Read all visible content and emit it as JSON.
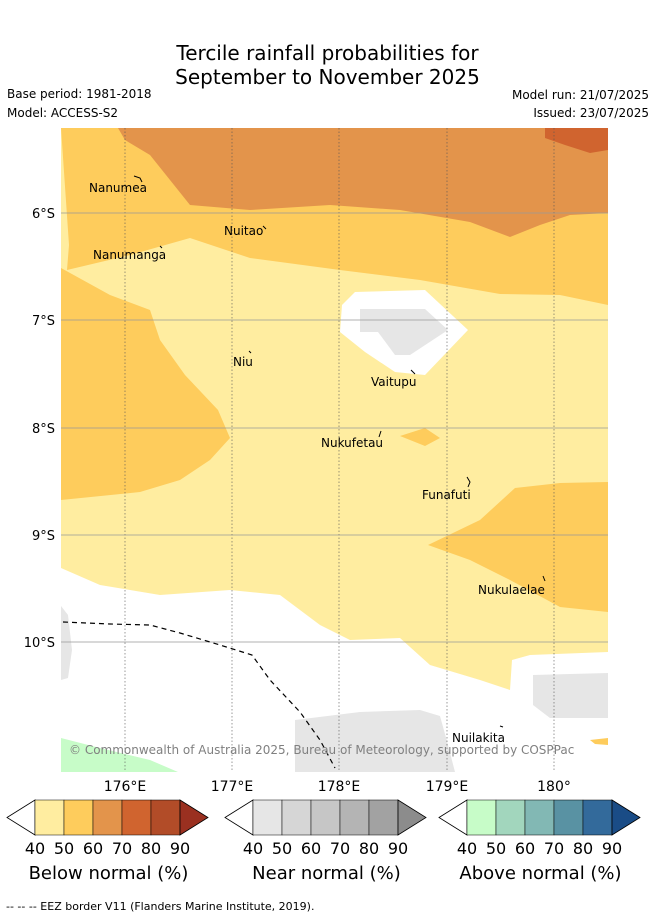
{
  "header": {
    "title_line1": "Tercile rainfall probabilities for",
    "title_line2": "September to November 2025",
    "base_period": "Base period: 1981-2018",
    "model": "Model: ACCESS-S2",
    "model_run": "Model run: 21/07/2025",
    "issued": "Issued: 23/07/2025"
  },
  "map": {
    "lat_ticks": [
      "6°S",
      "7°S",
      "8°S",
      "9°S",
      "10°S"
    ],
    "lon_ticks": [
      "176°E",
      "177°E",
      "178°E",
      "179°E",
      "180°"
    ],
    "islands": [
      "Nanumea",
      "Nuitao",
      "Nanumanga",
      "Niu",
      "Vaitupu",
      "Nukufetau",
      "Funafuti",
      "Nukulaelae",
      "Nuilakita"
    ],
    "copyright": "© Commonwealth of Australia 2025, Bureau of Meteorology, supported by COSPPac"
  },
  "legend": {
    "ticks": [
      "40",
      "50",
      "60",
      "70",
      "80",
      "90"
    ],
    "below": {
      "label": "Below normal (%)",
      "colors": [
        "#ffeda0",
        "#fecc5c",
        "#e3944b",
        "#d0642f",
        "#b24c28",
        "#9a3020"
      ]
    },
    "near": {
      "label": "Near normal (%)",
      "colors": [
        "#e6e6e6",
        "#d6d6d6",
        "#c6c6c6",
        "#b4b4b4",
        "#a2a2a2",
        "#8c8c8c"
      ]
    },
    "above": {
      "label": "Above normal (%)",
      "colors": [
        "#c7fcc8",
        "#a2d6bd",
        "#82b8b4",
        "#5992a3",
        "#336a9b",
        "#1a4c86"
      ]
    }
  },
  "footer": {
    "eez_note": "--  --  -- EEZ border V11 (Flanders Marine Institute, 2019)."
  }
}
